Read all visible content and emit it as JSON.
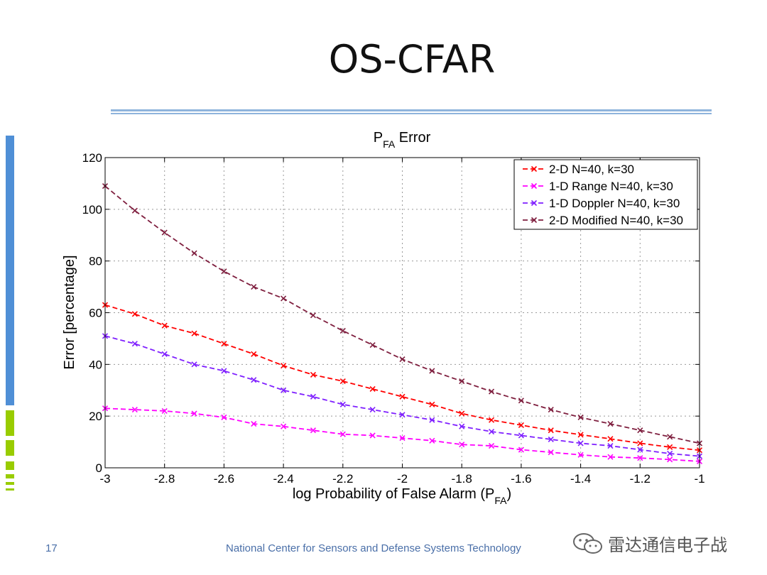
{
  "slide": {
    "title": "OS-CFAR",
    "page_number": "17",
    "footer": "National Center for Sensors and Defense Systems Technology",
    "watermark": "雷达通信电子战"
  },
  "chart_data": {
    "type": "line",
    "title_main": "P",
    "title_sub": "FA",
    "title_rest": " Error",
    "xlabel_main": "log Probability of False Alarm (P",
    "xlabel_sub": "FA",
    "xlabel_end": ")",
    "ylabel": "Error [percentage]",
    "xlim": [
      -3,
      -1
    ],
    "ylim": [
      0,
      120
    ],
    "xticks": [
      -3,
      -2.8,
      -2.6,
      -2.4,
      -2.2,
      -2,
      -1.8,
      -1.6,
      -1.4,
      -1.2,
      -1
    ],
    "xtick_labels": [
      "-3",
      "-2.8",
      "-2.6",
      "-2.4",
      "-2.2",
      "-2",
      "-1.8",
      "-1.6",
      "-1.4",
      "-1.2",
      "-1"
    ],
    "yticks": [
      0,
      20,
      40,
      60,
      80,
      100,
      120
    ],
    "ytick_labels": [
      "0",
      "20",
      "40",
      "60",
      "80",
      "100",
      "120"
    ],
    "grid": true,
    "legend_position": "top-right",
    "x": [
      -3,
      -2.9,
      -2.8,
      -2.7,
      -2.6,
      -2.5,
      -2.4,
      -2.3,
      -2.2,
      -2.1,
      -2,
      -1.9,
      -1.8,
      -1.7,
      -1.6,
      -1.5,
      -1.4,
      -1.3,
      -1.2,
      -1.1,
      -1
    ],
    "series": [
      {
        "name": "2-D N=40, k=30",
        "color": "#ff0000",
        "values": [
          63,
          59.5,
          55,
          52,
          48,
          44,
          39.5,
          36,
          33.5,
          30.5,
          27.5,
          24.5,
          21,
          18.5,
          16.5,
          14.5,
          12.8,
          11.2,
          9.5,
          8,
          6.8
        ]
      },
      {
        "name": "1-D Range N=40, k=30",
        "color": "#ff00ff",
        "values": [
          23,
          22.5,
          22,
          21,
          19.5,
          17,
          16,
          14.5,
          13,
          12.5,
          11.5,
          10.5,
          9,
          8.5,
          7,
          6,
          5,
          4.2,
          3.8,
          3.2,
          2.5
        ]
      },
      {
        "name": "1-D Doppler N=40, k=30",
        "color": "#7f1fff",
        "values": [
          51,
          48,
          44,
          40,
          37.5,
          34,
          30,
          27.5,
          24.5,
          22.5,
          20.5,
          18.5,
          16,
          14,
          12.5,
          11,
          9.5,
          8.5,
          7,
          5.5,
          4.5
        ]
      },
      {
        "name": "2-D Modified N=40, k=30",
        "color": "#7f1f3f",
        "values": [
          109,
          99.5,
          91,
          83,
          76,
          70,
          65.5,
          59,
          53,
          47.5,
          42,
          37.5,
          33.5,
          29.5,
          26,
          22.5,
          19.5,
          17,
          14.5,
          12,
          9.5
        ]
      }
    ]
  }
}
